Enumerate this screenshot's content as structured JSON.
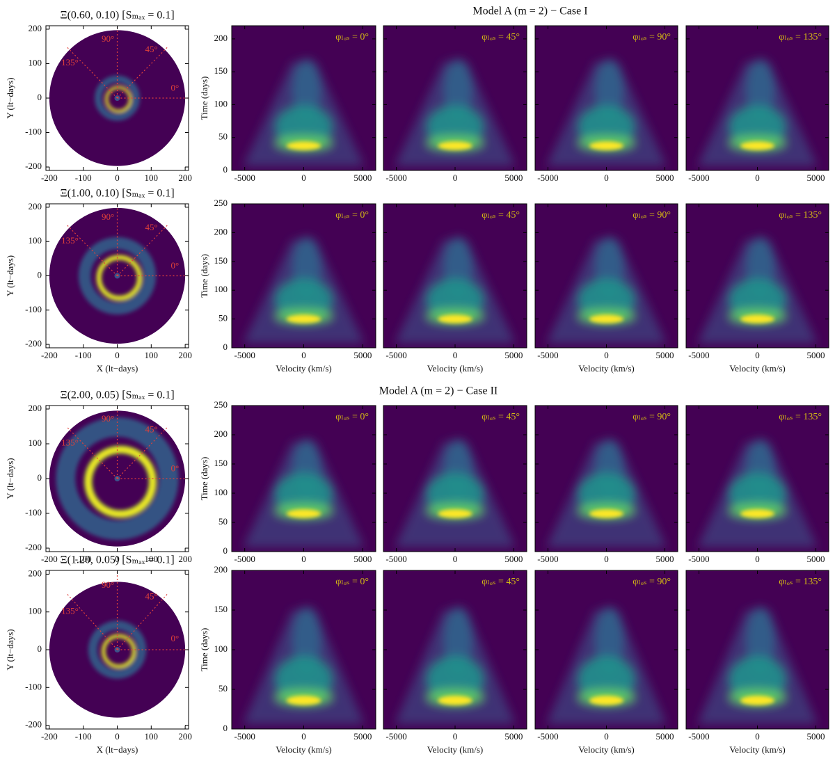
{
  "sections": [
    {
      "title": "Model A (m = 2) − Case I"
    },
    {
      "title": "Model A (m = 2) − Case II"
    }
  ],
  "chart_data": [
    {
      "type": "disk",
      "title": "Ξ(0.60, 0.10) [Sₘₐₓ = 0.1]",
      "ylabel": "Y (lt−days)",
      "xlim": [
        -210,
        210
      ],
      "ylim": [
        -210,
        210
      ],
      "xticks": [
        -200,
        -100,
        0,
        100,
        200
      ],
      "yticks": [
        -200,
        -100,
        0,
        100,
        200
      ],
      "angles": [
        {
          "value": 0,
          "label": "0°"
        },
        {
          "value": 45,
          "label": "45°"
        },
        {
          "value": 90,
          "label": "90°"
        },
        {
          "value": 135,
          "label": "135°"
        }
      ]
    },
    {
      "type": "transfer",
      "annotation": "φₗₒₛ = 0°",
      "ylabel": "Time (days)",
      "ytick_labels": true,
      "xlim": [
        -6100,
        6100
      ],
      "ylim": [
        0,
        220
      ],
      "xticks": [
        -5000,
        0,
        5000
      ],
      "yticks": [
        0,
        50,
        100,
        150,
        200
      ]
    },
    {
      "type": "transfer",
      "annotation": "φₗₒₛ = 45°",
      "ytick_labels": false,
      "xlim": [
        -6100,
        6100
      ],
      "ylim": [
        0,
        220
      ],
      "xticks": [
        -5000,
        0,
        5000
      ],
      "yticks": [
        0,
        50,
        100,
        150,
        200
      ]
    },
    {
      "type": "transfer",
      "annotation": "φₗₒₛ = 90°",
      "ytick_labels": false,
      "xlim": [
        -6100,
        6100
      ],
      "ylim": [
        0,
        220
      ],
      "xticks": [
        -5000,
        0,
        5000
      ],
      "yticks": [
        0,
        50,
        100,
        150,
        200
      ]
    },
    {
      "type": "transfer",
      "annotation": "φₗₒₛ = 135°",
      "ytick_labels": false,
      "xlim": [
        -6100,
        6100
      ],
      "ylim": [
        0,
        220
      ],
      "xticks": [
        -5000,
        0,
        5000
      ],
      "yticks": [
        0,
        50,
        100,
        150,
        200
      ]
    },
    {
      "type": "disk",
      "title": "Ξ(1.00, 0.10) [Sₘₐₓ = 0.1]",
      "ylabel": "Y (lt−days)",
      "xlabel": "X (lt−days)",
      "xlim": [
        -210,
        210
      ],
      "ylim": [
        -210,
        210
      ],
      "xticks": [
        -200,
        -100,
        0,
        100,
        200
      ],
      "yticks": [
        -200,
        -100,
        0,
        100,
        200
      ],
      "angles": [
        {
          "value": 0,
          "label": "0°"
        },
        {
          "value": 45,
          "label": "45°"
        },
        {
          "value": 90,
          "label": "90°"
        },
        {
          "value": 135,
          "label": "135°"
        }
      ]
    },
    {
      "type": "transfer",
      "annotation": "φₗₒₛ = 0°",
      "ylabel": "Time (days)",
      "xlabel": "Velocity (km/s)",
      "ytick_labels": true,
      "xlim": [
        -6100,
        6100
      ],
      "ylim": [
        0,
        250
      ],
      "xticks": [
        -5000,
        0,
        5000
      ],
      "yticks": [
        0,
        50,
        100,
        150,
        200,
        250
      ]
    },
    {
      "type": "transfer",
      "annotation": "φₗₒₛ = 45°",
      "xlabel": "Velocity (km/s)",
      "ytick_labels": false,
      "xlim": [
        -6100,
        6100
      ],
      "ylim": [
        0,
        250
      ],
      "xticks": [
        -5000,
        0,
        5000
      ],
      "yticks": [
        0,
        50,
        100,
        150,
        200,
        250
      ]
    },
    {
      "type": "transfer",
      "annotation": "φₗₒₛ = 90°",
      "xlabel": "Velocity (km/s)",
      "ytick_labels": false,
      "xlim": [
        -6100,
        6100
      ],
      "ylim": [
        0,
        250
      ],
      "xticks": [
        -5000,
        0,
        5000
      ],
      "yticks": [
        0,
        50,
        100,
        150,
        200,
        250
      ]
    },
    {
      "type": "transfer",
      "annotation": "φₗₒₛ = 135°",
      "xlabel": "Velocity (km/s)",
      "ytick_labels": false,
      "xlim": [
        -6100,
        6100
      ],
      "ylim": [
        0,
        250
      ],
      "xticks": [
        -5000,
        0,
        5000
      ],
      "yticks": [
        0,
        50,
        100,
        150,
        200,
        250
      ]
    },
    {
      "type": "disk",
      "title": "Ξ(2.00, 0.05) [Sₘₐₓ = 0.1]",
      "ylabel": "Y (lt−days)",
      "xlim": [
        -210,
        210
      ],
      "ylim": [
        -210,
        210
      ],
      "xticks": [
        -200,
        -100,
        0,
        100,
        200
      ],
      "yticks": [
        -200,
        -100,
        0,
        100,
        200
      ],
      "angles": [
        {
          "value": 0,
          "label": "0°"
        },
        {
          "value": 45,
          "label": "45°"
        },
        {
          "value": 90,
          "label": "90°"
        },
        {
          "value": 135,
          "label": "135°"
        }
      ]
    },
    {
      "type": "transfer",
      "annotation": "φₗₒₛ = 0°",
      "ylabel": "Time (days)",
      "ytick_labels": true,
      "xlim": [
        -6100,
        6100
      ],
      "ylim": [
        0,
        250
      ],
      "xticks": [
        -5000,
        0,
        5000
      ],
      "yticks": [
        0,
        50,
        100,
        150,
        200,
        250
      ]
    },
    {
      "type": "transfer",
      "annotation": "φₗₒₛ = 45°",
      "ytick_labels": false,
      "xlim": [
        -6100,
        6100
      ],
      "ylim": [
        0,
        250
      ],
      "xticks": [
        -5000,
        0,
        5000
      ],
      "yticks": [
        0,
        50,
        100,
        150,
        200,
        250
      ]
    },
    {
      "type": "transfer",
      "annotation": "φₗₒₛ = 90°",
      "ytick_labels": false,
      "xlim": [
        -6100,
        6100
      ],
      "ylim": [
        0,
        250
      ],
      "xticks": [
        -5000,
        0,
        5000
      ],
      "yticks": [
        0,
        50,
        100,
        150,
        200,
        250
      ]
    },
    {
      "type": "transfer",
      "annotation": "φₗₒₛ = 135°",
      "ytick_labels": false,
      "xlim": [
        -6100,
        6100
      ],
      "ylim": [
        0,
        250
      ],
      "xticks": [
        -5000,
        0,
        5000
      ],
      "yticks": [
        0,
        50,
        100,
        150,
        200,
        250
      ]
    },
    {
      "type": "disk",
      "title": "Ξ(1.20, 0.05) [Sₘₐₓ = 0.1]",
      "ylabel": "Y (lt−days)",
      "xlabel": "X (lt−days)",
      "xlim": [
        -210,
        210
      ],
      "ylim": [
        -210,
        210
      ],
      "xticks": [
        -200,
        -100,
        0,
        100,
        200
      ],
      "yticks": [
        -200,
        -100,
        0,
        100,
        200
      ],
      "angles": [
        {
          "value": 0,
          "label": "0°"
        },
        {
          "value": 45,
          "label": "45°"
        },
        {
          "value": 90,
          "label": "90°"
        },
        {
          "value": 135,
          "label": "135°"
        }
      ]
    },
    {
      "type": "transfer",
      "annotation": "φₗₒₛ = 0°",
      "ylabel": "Time (days)",
      "xlabel": "Velocity (km/s)",
      "ytick_labels": true,
      "xlim": [
        -6100,
        6100
      ],
      "ylim": [
        0,
        200
      ],
      "xticks": [
        -5000,
        0,
        5000
      ],
      "yticks": [
        0,
        50,
        100,
        150,
        200
      ]
    },
    {
      "type": "transfer",
      "annotation": "φₗₒₛ = 45°",
      "xlabel": "Velocity (km/s)",
      "ytick_labels": false,
      "xlim": [
        -6100,
        6100
      ],
      "ylim": [
        0,
        200
      ],
      "xticks": [
        -5000,
        0,
        5000
      ],
      "yticks": [
        0,
        50,
        100,
        150,
        200
      ]
    },
    {
      "type": "transfer",
      "annotation": "φₗₒₛ = 90°",
      "xlabel": "Velocity (km/s)",
      "ytick_labels": false,
      "xlim": [
        -6100,
        6100
      ],
      "ylim": [
        0,
        200
      ],
      "xticks": [
        -5000,
        0,
        5000
      ],
      "yticks": [
        0,
        50,
        100,
        150,
        200
      ]
    },
    {
      "type": "transfer",
      "annotation": "φₗₒₛ = 135°",
      "xlabel": "Velocity (km/s)",
      "ytick_labels": false,
      "xlim": [
        -6100,
        6100
      ],
      "ylim": [
        0,
        200
      ],
      "xticks": [
        -5000,
        0,
        5000
      ],
      "yticks": [
        0,
        50,
        100,
        150,
        200
      ]
    }
  ]
}
